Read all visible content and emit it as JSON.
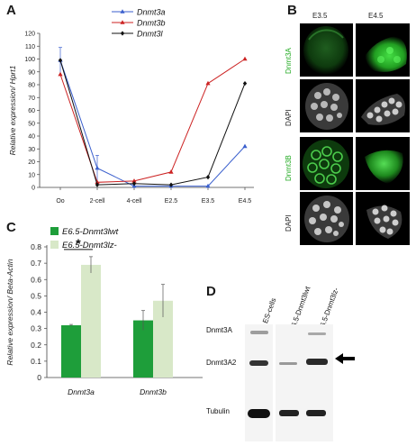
{
  "panels": {
    "a": "A",
    "b": "B",
    "c": "C",
    "d": "D"
  },
  "chart_data": [
    {
      "type": "line",
      "ylabel": "Relative expression/ Hprt1",
      "ylim": [
        0,
        120
      ],
      "yticks": [
        0,
        10,
        20,
        30,
        40,
        50,
        60,
        70,
        80,
        90,
        100,
        110,
        120
      ],
      "categories": [
        "Oo",
        "2-cell",
        "4-cell",
        "E2.5",
        "E3.5",
        "E4.5"
      ],
      "series": [
        {
          "name": "Dnmt3a",
          "color": "#3a5fcd",
          "marker": "triangle",
          "values": [
            99,
            15,
            1,
            1,
            1,
            32
          ],
          "error": [
            10,
            10,
            0,
            0,
            0,
            0
          ]
        },
        {
          "name": "Dnmt3b",
          "color": "#cc2222",
          "marker": "triangle",
          "values": [
            88,
            4,
            5,
            12,
            81,
            100
          ],
          "error": [
            0,
            0,
            0,
            0,
            0,
            0
          ]
        },
        {
          "name": "Dnmt3l",
          "color": "#111111",
          "marker": "diamond",
          "values": [
            99,
            2,
            3,
            2,
            8,
            81
          ],
          "error": [
            0,
            0,
            0,
            0,
            0,
            0
          ]
        }
      ],
      "legend": "top-center",
      "grid": false
    },
    {
      "type": "bar",
      "ylabel": "Relative expression/ Beta-Actin",
      "ylim": [
        0,
        0.8
      ],
      "yticks": [
        "0",
        "0.1",
        "0.2",
        "0.3",
        "0.4",
        "0.5",
        "0.6",
        "0.7",
        "0.8"
      ],
      "categories": [
        "Dnmt3a",
        "Dnmt3b"
      ],
      "series": [
        {
          "name": "E6.5-Dnmt3lwt",
          "color": "#1e9e3a",
          "values": [
            0.32,
            0.35
          ],
          "error": [
            0.005,
            0.06
          ]
        },
        {
          "name": "E6.5-Dnmt3lz-",
          "color": "#d8e8c8",
          "values": [
            0.69,
            0.47
          ],
          "error": [
            0.05,
            0.1
          ]
        }
      ],
      "annotations": [
        {
          "text": "*",
          "between": [
            "Dnmt3a:E6.5-Dnmt3lwt",
            "Dnmt3a:E6.5-Dnmt3lz-"
          ]
        }
      ],
      "legend": "top-left",
      "grid": false
    }
  ],
  "micrographs": {
    "columns": [
      "E3.5",
      "E4.5"
    ],
    "rows": [
      {
        "label": "Dnmt3A",
        "color": "#22aa22"
      },
      {
        "label": "DAPI",
        "color": "#222222"
      },
      {
        "label": "Dnmt3B",
        "color": "#22aa22"
      },
      {
        "label": "DAPI",
        "color": "#222222"
      }
    ]
  },
  "blot": {
    "lanes": [
      "ES-cells",
      "E6.5-Dnmt3lwt",
      "E6.5-Dnmt3lz-"
    ],
    "bands": [
      "Dnmt3A",
      "Dnmt3A2",
      "Tubulin"
    ],
    "arrow_icon": "arrow-left"
  }
}
